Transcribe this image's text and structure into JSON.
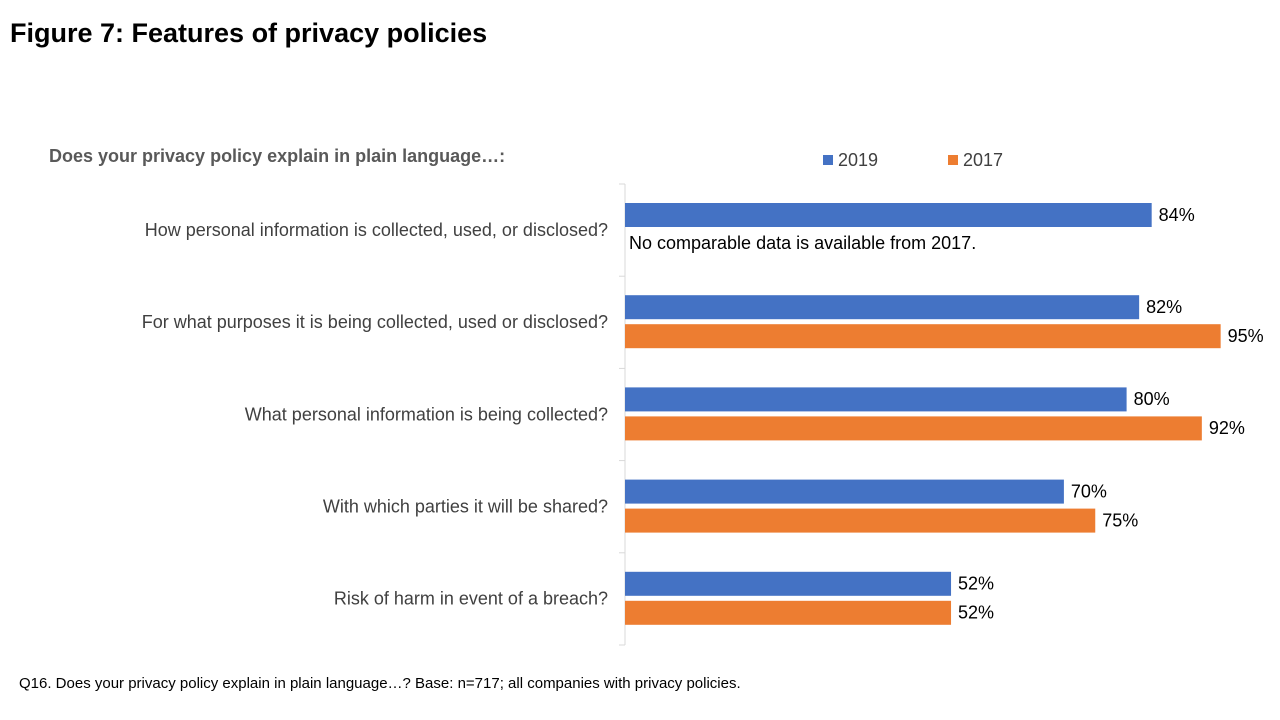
{
  "figure": {
    "title": "Figure 7: Features of privacy policies",
    "footnote": "Q16. Does your privacy policy explain in plain language…? Base: n=717; all companies with privacy policies."
  },
  "chart_data": {
    "type": "bar",
    "orientation": "horizontal",
    "title": "Does your privacy policy explain in plain language…:",
    "categories": [
      "How personal information is collected, used, or disclosed?",
      "For what purposes it is being collected, used or disclosed?",
      "What personal information is being collected?",
      "With which parties it will be shared?",
      "Risk of harm in event of a breach?"
    ],
    "series": [
      {
        "name": "2019",
        "color": "#4472C4",
        "values": [
          84,
          82,
          80,
          70,
          52
        ]
      },
      {
        "name": "2017",
        "color": "#ED7D31",
        "values": [
          null,
          95,
          92,
          75,
          52
        ]
      }
    ],
    "value_suffix": "%",
    "xlim": [
      0,
      100
    ],
    "legend_position": "top",
    "annotations": [
      {
        "category_index": 0,
        "text": "No comparable data is available from 2017."
      }
    ]
  }
}
